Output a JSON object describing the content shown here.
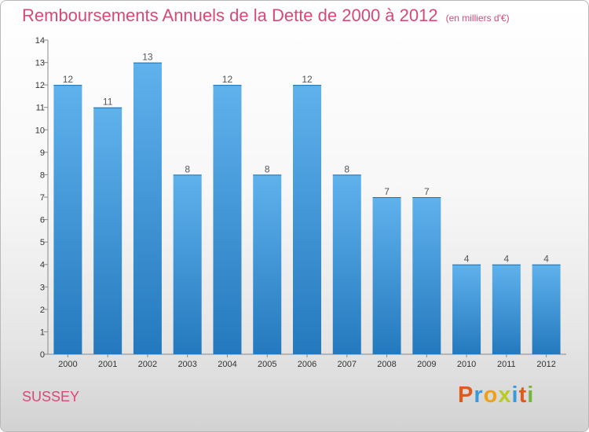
{
  "title": "Remboursements Annuels de la Dette de 2000 à 2012",
  "subtitle": "(en milliers d'€)",
  "commune": "SUSSEY",
  "logo": {
    "text": "Proxiti"
  },
  "colors": {
    "bar": "#2e86cc",
    "bar_light": "#5aaee8",
    "title": "#d54a76"
  },
  "chart_data": {
    "type": "bar",
    "title": "Remboursements Annuels de la Dette de 2000 à 2012",
    "subtitle": "(en milliers d'€)",
    "xlabel": "",
    "ylabel": "",
    "categories": [
      "2000",
      "2001",
      "2002",
      "2003",
      "2004",
      "2005",
      "2006",
      "2007",
      "2008",
      "2009",
      "2010",
      "2011",
      "2012"
    ],
    "values": [
      12,
      11,
      13,
      8,
      12,
      8,
      12,
      8,
      7,
      7,
      4,
      4,
      4
    ],
    "ylim": [
      0,
      14
    ],
    "yticks": [
      0,
      1,
      2,
      3,
      4,
      5,
      6,
      7,
      8,
      9,
      10,
      11,
      12,
      13,
      14
    ],
    "grid": false,
    "legend": "none"
  }
}
